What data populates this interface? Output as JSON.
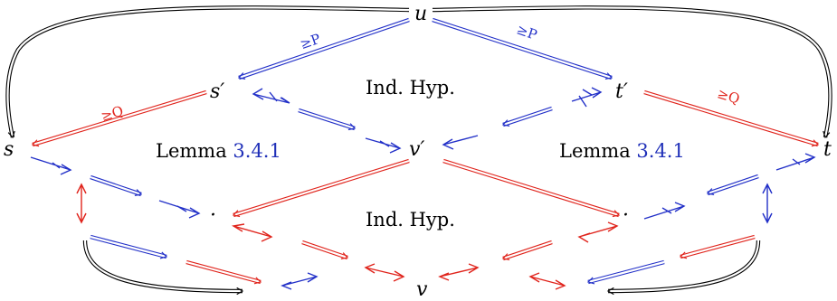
{
  "colors": {
    "blue": "#2230c8",
    "red": "#e0241c",
    "black": "#000000",
    "ref": "#1f2fb8"
  },
  "nodes": {
    "u": "u",
    "s_prime": "s′",
    "t_prime": "t′",
    "s": "s",
    "t": "t",
    "v_prime": "v′",
    "dot_left": "·",
    "dot_right": "·",
    "v": "v"
  },
  "regions": {
    "top": "Ind. Hyp.",
    "left": {
      "text": "Lemma ",
      "ref": "3.4.1"
    },
    "right": {
      "text": "Lemma ",
      "ref": "3.4.1"
    },
    "bottom": "Ind. Hyp."
  },
  "edge_labels": {
    "u_to_s_prime": "≥P",
    "u_to_t_prime": "≥P",
    "s_prime_to_s": "≥Q",
    "t_prime_to_t": "≥Q"
  }
}
